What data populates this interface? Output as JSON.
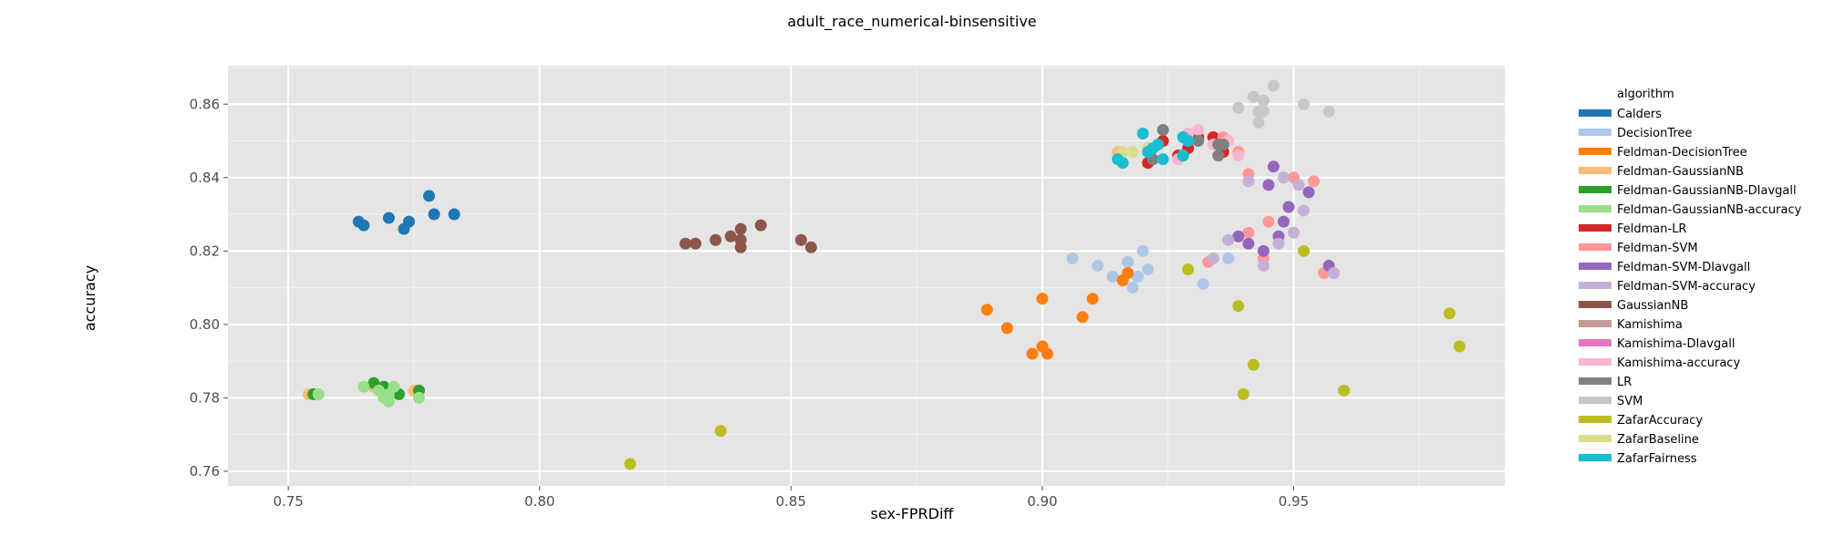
{
  "chart_data": {
    "type": "scatter",
    "title": "adult_race_numerical-binsensitive",
    "xlabel": "sex-FPRDiff",
    "ylabel": "accuracy",
    "xlim": [
      0.738,
      0.992
    ],
    "ylim": [
      0.756,
      0.8705
    ],
    "x_ticks": [
      0.75,
      0.8,
      0.85,
      0.9,
      0.95
    ],
    "x_tick_labels": [
      "0.75",
      "0.80",
      "0.85",
      "0.90",
      "0.95"
    ],
    "y_ticks": [
      0.76,
      0.78,
      0.8,
      0.82,
      0.84,
      0.86
    ],
    "y_tick_labels": [
      "0.76",
      "0.78",
      "0.80",
      "0.82",
      "0.84",
      "0.86"
    ],
    "grid": true,
    "panel_background": "#e5e5e5",
    "legend_title": "algorithm",
    "legend_position": "right",
    "series": [
      {
        "name": "Calders",
        "color": "#1f77b4",
        "points": [
          [
            0.764,
            0.828
          ],
          [
            0.765,
            0.827
          ],
          [
            0.77,
            0.829
          ],
          [
            0.773,
            0.826
          ],
          [
            0.774,
            0.828
          ],
          [
            0.778,
            0.835
          ],
          [
            0.779,
            0.83
          ],
          [
            0.783,
            0.83
          ]
        ]
      },
      {
        "name": "DecisionTree",
        "color": "#aec7e8",
        "points": [
          [
            0.906,
            0.818
          ],
          [
            0.911,
            0.816
          ],
          [
            0.914,
            0.813
          ],
          [
            0.916,
            0.812
          ],
          [
            0.917,
            0.817
          ],
          [
            0.918,
            0.81
          ],
          [
            0.919,
            0.813
          ],
          [
            0.92,
            0.82
          ],
          [
            0.921,
            0.815
          ],
          [
            0.932,
            0.811
          ],
          [
            0.937,
            0.818
          ]
        ]
      },
      {
        "name": "Feldman-DecisionTree",
        "color": "#ff7f0e",
        "points": [
          [
            0.889,
            0.804
          ],
          [
            0.893,
            0.799
          ],
          [
            0.898,
            0.792
          ],
          [
            0.9,
            0.807
          ],
          [
            0.9,
            0.794
          ],
          [
            0.901,
            0.792
          ],
          [
            0.908,
            0.802
          ],
          [
            0.91,
            0.807
          ],
          [
            0.916,
            0.812
          ],
          [
            0.917,
            0.814
          ]
        ]
      },
      {
        "name": "Feldman-GaussianNB",
        "color": "#ffbb78",
        "points": [
          [
            0.754,
            0.781
          ],
          [
            0.756,
            0.781
          ],
          [
            0.767,
            0.783
          ],
          [
            0.771,
            0.782
          ],
          [
            0.775,
            0.782
          ],
          [
            0.915,
            0.847
          ]
        ]
      },
      {
        "name": "Feldman-GaussianNB-DIavgall",
        "color": "#2ca02c",
        "points": [
          [
            0.755,
            0.781
          ],
          [
            0.767,
            0.784
          ],
          [
            0.769,
            0.783
          ],
          [
            0.772,
            0.781
          ],
          [
            0.776,
            0.782
          ]
        ]
      },
      {
        "name": "Feldman-GaussianNB-accuracy",
        "color": "#98df8a",
        "points": [
          [
            0.756,
            0.781
          ],
          [
            0.765,
            0.783
          ],
          [
            0.768,
            0.782
          ],
          [
            0.769,
            0.78
          ],
          [
            0.77,
            0.781
          ],
          [
            0.771,
            0.783
          ],
          [
            0.776,
            0.78
          ],
          [
            0.77,
            0.779
          ]
        ]
      },
      {
        "name": "Feldman-LR",
        "color": "#d62728",
        "points": [
          [
            0.921,
            0.844
          ],
          [
            0.924,
            0.85
          ],
          [
            0.927,
            0.846
          ],
          [
            0.931,
            0.851
          ],
          [
            0.934,
            0.851
          ],
          [
            0.936,
            0.847
          ],
          [
            0.929,
            0.848
          ]
        ]
      },
      {
        "name": "Feldman-SVM",
        "color": "#ff9896",
        "points": [
          [
            0.933,
            0.817
          ],
          [
            0.936,
            0.851
          ],
          [
            0.939,
            0.847
          ],
          [
            0.941,
            0.841
          ],
          [
            0.941,
            0.825
          ],
          [
            0.944,
            0.818
          ],
          [
            0.945,
            0.828
          ],
          [
            0.95,
            0.84
          ],
          [
            0.954,
            0.839
          ],
          [
            0.956,
            0.814
          ]
        ]
      },
      {
        "name": "Feldman-SVM-DIavgall",
        "color": "#9467bd",
        "points": [
          [
            0.939,
            0.824
          ],
          [
            0.941,
            0.822
          ],
          [
            0.944,
            0.82
          ],
          [
            0.945,
            0.838
          ],
          [
            0.946,
            0.843
          ],
          [
            0.948,
            0.828
          ],
          [
            0.949,
            0.832
          ],
          [
            0.953,
            0.836
          ],
          [
            0.957,
            0.816
          ],
          [
            0.947,
            0.824
          ]
        ]
      },
      {
        "name": "Feldman-SVM-accuracy",
        "color": "#c5b0d5",
        "points": [
          [
            0.934,
            0.818
          ],
          [
            0.937,
            0.823
          ],
          [
            0.941,
            0.839
          ],
          [
            0.944,
            0.816
          ],
          [
            0.947,
            0.822
          ],
          [
            0.948,
            0.84
          ],
          [
            0.95,
            0.825
          ],
          [
            0.951,
            0.838
          ],
          [
            0.952,
            0.831
          ],
          [
            0.958,
            0.814
          ]
        ]
      },
      {
        "name": "GaussianNB",
        "color": "#8c564b",
        "points": [
          [
            0.829,
            0.822
          ],
          [
            0.831,
            0.822
          ],
          [
            0.835,
            0.823
          ],
          [
            0.838,
            0.824
          ],
          [
            0.84,
            0.826
          ],
          [
            0.84,
            0.823
          ],
          [
            0.84,
            0.821
          ],
          [
            0.844,
            0.827
          ],
          [
            0.852,
            0.823
          ],
          [
            0.854,
            0.821
          ]
        ]
      },
      {
        "name": "Kamishima",
        "color": "#c49c94",
        "points": []
      },
      {
        "name": "Kamishima-DIavgall",
        "color": "#e377c2",
        "points": []
      },
      {
        "name": "Kamishima-accuracy",
        "color": "#f7b6d2",
        "points": [
          [
            0.927,
            0.845
          ],
          [
            0.929,
            0.852
          ],
          [
            0.931,
            0.853
          ],
          [
            0.934,
            0.849
          ],
          [
            0.937,
            0.85
          ],
          [
            0.939,
            0.846
          ]
        ]
      },
      {
        "name": "LR",
        "color": "#7f7f7f",
        "points": [
          [
            0.922,
            0.845
          ],
          [
            0.924,
            0.853
          ],
          [
            0.928,
            0.846
          ],
          [
            0.931,
            0.85
          ],
          [
            0.935,
            0.849
          ],
          [
            0.935,
            0.846
          ],
          [
            0.936,
            0.849
          ]
        ]
      },
      {
        "name": "SVM",
        "color": "#c7c7c7",
        "points": [
          [
            0.939,
            0.859
          ],
          [
            0.942,
            0.862
          ],
          [
            0.943,
            0.858
          ],
          [
            0.944,
            0.861
          ],
          [
            0.944,
            0.858
          ],
          [
            0.943,
            0.855
          ],
          [
            0.946,
            0.865
          ],
          [
            0.952,
            0.86
          ],
          [
            0.957,
            0.858
          ]
        ]
      },
      {
        "name": "ZafarAccuracy",
        "color": "#bcbd22",
        "points": [
          [
            0.818,
            0.762
          ],
          [
            0.836,
            0.771
          ],
          [
            0.929,
            0.815
          ],
          [
            0.939,
            0.805
          ],
          [
            0.94,
            0.781
          ],
          [
            0.942,
            0.789
          ],
          [
            0.952,
            0.82
          ],
          [
            0.96,
            0.782
          ],
          [
            0.981,
            0.803
          ],
          [
            0.983,
            0.794
          ]
        ]
      },
      {
        "name": "ZafarBaseline",
        "color": "#dbdb8d",
        "points": [
          [
            0.916,
            0.847
          ],
          [
            0.918,
            0.847
          ],
          [
            0.921,
            0.848
          ]
        ]
      },
      {
        "name": "ZafarFairness",
        "color": "#17becf",
        "points": [
          [
            0.915,
            0.845
          ],
          [
            0.916,
            0.844
          ],
          [
            0.92,
            0.852
          ],
          [
            0.921,
            0.847
          ],
          [
            0.923,
            0.849
          ],
          [
            0.924,
            0.845
          ],
          [
            0.928,
            0.846
          ],
          [
            0.928,
            0.851
          ],
          [
            0.929,
            0.85
          ],
          [
            0.922,
            0.848
          ]
        ]
      }
    ]
  }
}
